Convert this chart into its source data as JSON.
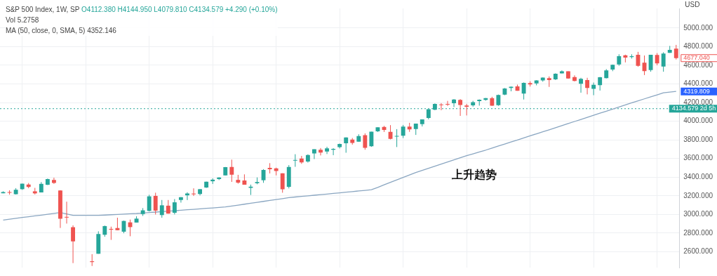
{
  "chart_data": {
    "type": "candlestick",
    "title": "S&P 500 Index, 1W, SP",
    "annotations": [
      "O4112.380 H4144.950 L4079.810 C4134.579 +4.290 (+0.10%)",
      "Vol 5.2758",
      "MA (50, close, 0, SMA, 5) 4352.146",
      "上升趋势"
    ],
    "ylabel": "USD",
    "categories": [
      null,
      null,
      null,
      null,
      null,
      null,
      null,
      null,
      null,
      null,
      null,
      null,
      null,
      null,
      null,
      null,
      null,
      null,
      null,
      null,
      null,
      null,
      null,
      null,
      null,
      null,
      null,
      null,
      null,
      null,
      null,
      null,
      null,
      null,
      null,
      null,
      null,
      null,
      null,
      null,
      null,
      null,
      null,
      null,
      null,
      null,
      null,
      null,
      null,
      null,
      null,
      null,
      null,
      null,
      null,
      null,
      null,
      null,
      null,
      null,
      null,
      null,
      null,
      null,
      null,
      null,
      null,
      null,
      null,
      null,
      null,
      null,
      null,
      null,
      null,
      null,
      null,
      null,
      null,
      null,
      null,
      null,
      null,
      null,
      null,
      null,
      null,
      null,
      null,
      null,
      null,
      null,
      null,
      null,
      null,
      null,
      null,
      null,
      null,
      null,
      null,
      null,
      null,
      null,
      null,
      null,
      null
    ],
    "ohlc": [
      [
        3227,
        3248,
        3227,
        3240
      ],
      [
        3240,
        3259,
        3212,
        3235
      ],
      [
        3217,
        3282,
        3214,
        3265
      ],
      [
        3271,
        3330,
        3264,
        3330
      ],
      [
        3321,
        3337,
        3281,
        3295
      ],
      [
        3248,
        3285,
        3214,
        3226
      ],
      [
        3236,
        3347,
        3236,
        3328
      ],
      [
        3318,
        3385,
        3316,
        3380
      ],
      [
        3370,
        3394,
        3328,
        3338
      ],
      [
        3257,
        3260,
        2855,
        2954
      ],
      [
        2974,
        3137,
        2902,
        2972
      ],
      [
        2863,
        2883,
        2478,
        2711
      ],
      null,
      null,
      [
        2498,
        2574,
        2447,
        2489
      ],
      [
        2578,
        2819,
        2578,
        2790
      ],
      [
        2782,
        2880,
        2761,
        2875
      ],
      [
        2845,
        2869,
        2727,
        2837
      ],
      [
        2854,
        2965,
        2830,
        2831
      ],
      [
        2815,
        2934,
        2798,
        2930
      ],
      [
        2915,
        2945,
        2766,
        2864
      ],
      [
        2913,
        2980,
        2913,
        2955
      ],
      [
        3004,
        3068,
        2984,
        3044
      ],
      [
        3038,
        3211,
        3032,
        3194
      ],
      [
        3199,
        3233,
        2999,
        3041
      ],
      [
        2993,
        3155,
        2965,
        3098
      ],
      [
        3094,
        3155,
        3008,
        3009
      ],
      [
        3018,
        3165,
        3000,
        3130
      ],
      [
        3155,
        3186,
        3127,
        3185
      ],
      [
        3205,
        3238,
        3154,
        3225
      ],
      [
        3224,
        3280,
        3198,
        3216
      ],
      [
        3219,
        3272,
        3204,
        3271
      ],
      [
        3289,
        3352,
        3284,
        3351
      ],
      [
        3356,
        3387,
        3327,
        3373
      ],
      [
        3380,
        3399,
        3369,
        3397
      ],
      [
        3419,
        3509,
        3419,
        3508
      ],
      [
        3509,
        3588,
        3349,
        3427
      ],
      [
        3371,
        3425,
        3330,
        3341
      ],
      [
        3364,
        3430,
        3319,
        3319
      ],
      [
        3285,
        3320,
        3209,
        3298
      ],
      [
        3335,
        3397,
        3324,
        3348
      ],
      [
        3367,
        3486,
        3339,
        3477
      ],
      [
        3500,
        3550,
        3440,
        3484
      ],
      [
        3494,
        3502,
        3419,
        3465
      ],
      [
        3441,
        3441,
        3233,
        3270
      ],
      [
        3296,
        3529,
        3279,
        3510
      ],
      [
        3583,
        3646,
        3511,
        3585
      ],
      [
        3600,
        3628,
        3543,
        3558
      ],
      [
        3567,
        3645,
        3556,
        3638
      ],
      [
        3654,
        3699,
        3594,
        3699
      ],
      [
        3694,
        3712,
        3633,
        3663
      ],
      [
        3675,
        3726,
        3648,
        3709
      ],
      [
        3694,
        3711,
        3636,
        3703
      ],
      [
        3723,
        3760,
        3708,
        3756
      ],
      [
        3764,
        3827,
        3662,
        3825
      ],
      [
        3803,
        3820,
        3749,
        3768
      ],
      [
        3781,
        3860,
        3781,
        3841
      ],
      [
        3851,
        3870,
        3694,
        3714
      ],
      [
        3732,
        3887,
        3725,
        3887
      ],
      [
        3892,
        3934,
        3885,
        3934
      ],
      [
        3939,
        3950,
        3885,
        3907
      ],
      [
        3886,
        3958,
        3805,
        3811
      ],
      [
        3842,
        3915,
        3723,
        3842
      ],
      [
        3844,
        3960,
        3819,
        3943
      ],
      [
        3943,
        3983,
        3886,
        3913
      ],
      [
        3916,
        3975,
        3853,
        3975
      ],
      [
        3969,
        4020,
        3944,
        4019
      ],
      [
        4034,
        4129,
        4020,
        4129
      ],
      [
        4124,
        4191,
        4118,
        4185
      ],
      [
        4180,
        4194,
        4118,
        4180
      ],
      [
        4186,
        4218,
        4164,
        4181
      ],
      [
        4192,
        4238,
        4152,
        4233
      ],
      [
        4228,
        4237,
        4057,
        4174
      ],
      [
        4169,
        4186,
        4062,
        4156
      ],
      [
        4171,
        4219,
        4156,
        4204
      ],
      [
        4216,
        4234,
        4167,
        4230
      ],
      [
        4229,
        4249,
        4220,
        4247
      ],
      [
        4248,
        4262,
        4165,
        4166
      ],
      [
        4173,
        4286,
        4165,
        4281
      ],
      [
        4285,
        4356,
        4279,
        4352
      ],
      [
        4356,
        4372,
        4321,
        4370
      ],
      [
        4373,
        4393,
        4327,
        4327
      ],
      [
        4296,
        4416,
        4233,
        4412
      ],
      [
        4409,
        4429,
        4372,
        4395
      ],
      [
        4406,
        4440,
        4385,
        4437
      ],
      [
        4438,
        4470,
        4424,
        4468
      ],
      [
        4462,
        4481,
        4368,
        4442
      ],
      [
        4450,
        4514,
        4442,
        4509
      ],
      [
        4513,
        4545,
        4513,
        4535
      ],
      [
        4535,
        4536,
        4455,
        4459
      ],
      [
        4474,
        4492,
        4427,
        4433
      ],
      [
        4402,
        4466,
        4306,
        4455
      ],
      [
        4442,
        4466,
        4288,
        4357
      ],
      [
        4348,
        4415,
        4279,
        4391
      ],
      [
        4386,
        4475,
        4329,
        4471
      ],
      [
        4463,
        4559,
        4459,
        4545
      ],
      [
        4554,
        4608,
        4537,
        4605
      ],
      [
        4610,
        4718,
        4595,
        4698
      ],
      [
        4707,
        4714,
        4631,
        4683
      ],
      [
        4689,
        4718,
        4672,
        4698
      ],
      [
        4712,
        4744,
        4585,
        4595
      ],
      [
        4628,
        4705,
        4495,
        4538
      ],
      [
        4548,
        4713,
        4531,
        4712
      ],
      [
        4710,
        4731,
        4600,
        4621
      ],
      [
        4587,
        4740,
        4531,
        4726
      ],
      [
        4733,
        4808,
        4733,
        4766
      ],
      [
        4778,
        4819,
        4662,
        4677.04
      ]
    ],
    "colors": [
      "#26a69a",
      "#ef5350",
      "#26a69a",
      "#26a69a",
      "#ef5350",
      "#ef5350",
      "#26a69a",
      "#26a69a",
      "#ef5350",
      "#ef5350",
      "#ef5350",
      "#ef5350",
      null,
      null,
      "#ef5350",
      "#26a69a",
      "#26a69a",
      "#ef5350",
      "#ef5350",
      "#26a69a",
      "#ef5350",
      "#26a69a",
      "#26a69a",
      "#26a69a",
      "#ef5350",
      "#26a69a",
      "#ef5350",
      "#26a69a",
      "#26a69a",
      "#26a69a",
      "#ef5350",
      "#26a69a",
      "#26a69a",
      "#26a69a",
      "#26a69a",
      "#26a69a",
      "#ef5350",
      "#ef5350",
      "#ef5350",
      "#26a69a",
      "#26a69a",
      "#26a69a",
      "#ef5350",
      "#ef5350",
      "#ef5350",
      "#26a69a",
      "#26a69a",
      "#ef5350",
      "#26a69a",
      "#26a69a",
      "#ef5350",
      "#26a69a",
      "#26a69a",
      "#26a69a",
      "#26a69a",
      "#ef5350",
      "#26a69a",
      "#ef5350",
      "#26a69a",
      "#26a69a",
      "#ef5350",
      "#ef5350",
      "#26a69a",
      "#26a69a",
      "#ef5350",
      "#26a69a",
      "#26a69a",
      "#26a69a",
      "#26a69a",
      "#ef5350",
      "#ef5350",
      "#26a69a",
      "#ef5350",
      "#ef5350",
      "#26a69a",
      "#26a69a",
      "#26a69a",
      "#ef5350",
      "#26a69a",
      "#26a69a",
      "#26a69a",
      "#ef5350",
      "#26a69a",
      "#ef5350",
      "#26a69a",
      "#26a69a",
      "#ef5350",
      "#26a69a",
      "#26a69a",
      "#ef5350",
      "#ef5350",
      "#26a69a",
      "#ef5350",
      "#26a69a",
      "#26a69a",
      "#26a69a",
      "#26a69a",
      "#26a69a",
      "#ef5350",
      "#26a69a",
      "#ef5350",
      "#ef5350",
      "#26a69a",
      "#ef5350",
      "#26a69a",
      "#26a69a",
      "#ef5350"
    ],
    "value_labels": [
      null,
      null,
      null,
      null,
      null,
      null,
      null,
      null,
      null,
      null,
      null,
      null,
      null,
      null,
      null,
      null,
      null,
      null,
      null,
      null,
      null,
      null,
      null,
      null,
      null,
      null,
      null,
      null,
      null,
      null,
      null,
      null,
      null,
      null,
      null,
      null,
      null,
      null,
      null,
      null,
      null,
      null,
      null,
      null,
      null,
      null,
      null,
      null,
      null,
      null,
      null,
      null,
      null,
      null,
      null,
      null,
      null,
      null,
      null,
      null,
      null,
      null,
      null,
      null,
      null,
      null,
      null,
      null,
      null,
      null,
      null,
      null,
      null,
      null,
      null,
      null,
      null,
      null,
      null,
      null,
      null,
      null,
      null,
      null,
      null,
      null,
      null,
      null,
      null,
      null,
      null,
      null,
      null,
      null,
      null,
      null,
      null,
      null,
      null,
      null,
      null,
      null,
      null,
      null,
      null,
      null,
      "4677.040"
    ],
    "series": [
      {
        "type": "line",
        "color": "#8aa6c1",
        "values": [
          2940,
          2949,
          2958,
          2967,
          2976,
          2984,
          2993,
          3002,
          3011,
          3020,
          3005,
          2990,
          2990,
          2990,
          2990,
          2990,
          2993,
          2997,
          3000,
          3003,
          3007,
          3010,
          3015,
          3020,
          3025,
          3030,
          3035,
          3040,
          3045,
          3050,
          3055,
          3060,
          3065,
          3070,
          3075,
          3080,
          3090,
          3100,
          3110,
          3120,
          3130,
          3140,
          3150,
          3160,
          3170,
          3180,
          3187,
          3193,
          3200,
          3206,
          3213,
          3219,
          3226,
          3232,
          3239,
          3245,
          3252,
          3258,
          3265,
          3290,
          3318,
          3345,
          3371,
          3397,
          3424,
          3450,
          3473,
          3495,
          3518,
          3540,
          3563,
          3585,
          3608,
          3630,
          3650,
          3670,
          3690,
          3712,
          3734,
          3755,
          3777,
          3799,
          3821,
          3843,
          3865,
          3886,
          3908,
          3930,
          3952,
          3975,
          3997,
          4019,
          4041,
          4064,
          4086,
          4108,
          4130,
          4153,
          4175,
          4197,
          4218,
          4240,
          4262,
          4283,
          4305,
          4312,
          4319.809
        ],
        "value_labels": [
          null,
          null,
          null,
          null,
          null,
          null,
          null,
          null,
          null,
          null,
          null,
          null,
          null,
          null,
          null,
          null,
          null,
          null,
          null,
          null,
          null,
          null,
          null,
          null,
          null,
          null,
          null,
          null,
          null,
          null,
          null,
          null,
          null,
          null,
          null,
          null,
          null,
          null,
          null,
          null,
          null,
          null,
          null,
          null,
          null,
          null,
          null,
          null,
          null,
          null,
          null,
          null,
          null,
          null,
          null,
          null,
          null,
          null,
          null,
          null,
          null,
          null,
          null,
          null,
          null,
          null,
          null,
          null,
          null,
          null,
          null,
          null,
          null,
          null,
          null,
          null,
          null,
          null,
          null,
          null,
          null,
          null,
          null,
          null,
          null,
          null,
          null,
          null,
          null,
          null,
          null,
          null,
          null,
          null,
          null,
          null,
          null,
          null,
          null,
          null,
          null,
          null,
          null,
          null,
          null,
          null,
          "4319.809"
        ]
      }
    ],
    "ref_lines": [
      {
        "axis": "y",
        "value": 4134.579,
        "label": "4134.579\n2d 5h",
        "color": "#26a69a",
        "line_style": "dotted"
      }
    ],
    "ylim": [
      2430,
      5210
    ],
    "yticks": [
      {
        "value": 2600,
        "label": "2600.000"
      },
      {
        "value": 2800,
        "label": "2800.000"
      },
      {
        "value": 3000,
        "label": "3000.000"
      },
      {
        "value": 3200,
        "label": "3200.000"
      },
      {
        "value": 3400,
        "label": "3400.000"
      },
      {
        "value": 3600,
        "label": "3600.000"
      },
      {
        "value": 3800,
        "label": "3800.000"
      },
      {
        "value": 4000,
        "label": "4000.000"
      },
      {
        "value": 4200,
        "label": "4200.000"
      },
      {
        "value": 4400,
        "label": "4400.000"
      },
      {
        "value": 4600,
        "label": "4600.000"
      },
      {
        "value": 4800,
        "label": "4800.000"
      },
      {
        "value": 5000,
        "label": "5000.000"
      }
    ],
    "grid": true,
    "tick_labels": "y"
  }
}
